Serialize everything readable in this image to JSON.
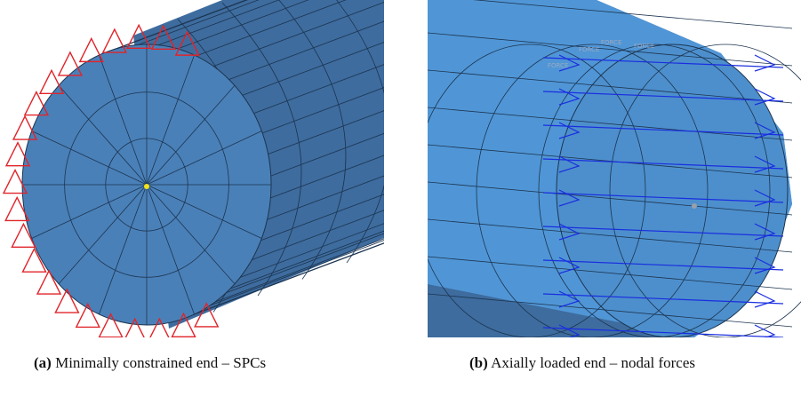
{
  "figure_a": {
    "label": "(a)",
    "caption": "Minimally constrained end – SPCs"
  },
  "figure_b": {
    "label": "(b)",
    "caption": "Axially loaded end – nodal forces",
    "force_labels": [
      "FORCE",
      "FORCE",
      "FORCE",
      "FORCE"
    ]
  }
}
